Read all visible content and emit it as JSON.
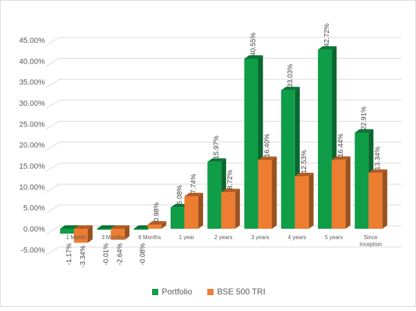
{
  "chart_data": {
    "type": "bar",
    "title": "",
    "xlabel": "",
    "ylabel": "",
    "ylim": [
      -5,
      45
    ],
    "yticks": [
      "-5.00%",
      "0.00%",
      "5.00%",
      "10.00%",
      "15.00%",
      "20.00%",
      "25.00%",
      "30.00%",
      "35.00%",
      "40.00%",
      "45.00%"
    ],
    "categories": [
      "1 Month",
      "3 Months",
      "6 Months",
      "1 year",
      "2 years",
      "3 years",
      "4 years",
      "5 years",
      "Since Inception"
    ],
    "series": [
      {
        "name": "Portfolio",
        "color": "#0f9d48",
        "values": [
          -1.17,
          -0.01,
          -0.08,
          5.08,
          15.97,
          40.55,
          33.03,
          42.72,
          22.91
        ],
        "labels": [
          "-1.17%",
          "-0.01%",
          "-0.08%",
          "5.08%",
          "15.97%",
          "40.55%",
          "33.03%",
          "42.72%",
          "22.91%"
        ]
      },
      {
        "name": "BSE 500 TRI",
        "color": "#ed7d31",
        "values": [
          -3.34,
          -2.64,
          0.98,
          7.74,
          8.72,
          16.4,
          12.53,
          16.44,
          13.34
        ],
        "labels": [
          "-3.34%",
          "-2.64%",
          "0.98%",
          "7.74%",
          "8.72%",
          "16.40%",
          "12.53%",
          "16.44%",
          "13.34%"
        ]
      }
    ],
    "legend_position": "bottom",
    "grid": true
  }
}
